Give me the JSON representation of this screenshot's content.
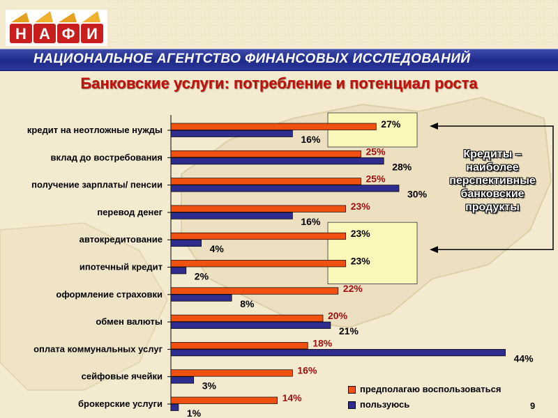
{
  "header": {
    "logo_letters": [
      "Н",
      "А",
      "Ф",
      "И"
    ],
    "banner_text": "НАЦИОНАЛЬНОЕ АГЕНТСТВО ФИНАНСОВЫХ ИССЛЕДОВАНИЙ"
  },
  "colors": {
    "background": "#f3ead0",
    "banner": "#23308e",
    "title": "#c0110e",
    "series_plan": "#f05010",
    "series_use": "#2e2c8c",
    "label_red": "#a01010",
    "highlight_box": "#fbf7b8"
  },
  "annotation": {
    "text": [
      "Кредиты –",
      "наиболее",
      "перспективные",
      "банковские",
      "продукты"
    ],
    "points_to": [
      "кредит на неотложные нужды",
      "автокредитование"
    ]
  },
  "page_number": "9",
  "chart_data": {
    "type": "bar",
    "orientation": "horizontal",
    "title": "Банковские услуги: потребление и потенциал роста",
    "xlabel": "",
    "ylabel": "",
    "unit": "%",
    "grid": false,
    "legend_position": "bottom-right",
    "categories": [
      "кредит на неотложные нужды",
      "вклад до востребования",
      "получение зарплаты/ пенсии",
      "перевод денег",
      "автокредитование",
      "ипотечный кредит",
      "оформление страховки",
      "обмен валюты",
      "оплата коммунальных услуг",
      "сейфовые ячейки",
      "брокерские услуги"
    ],
    "series": [
      {
        "name": "предполагаю воспользоваться",
        "color": "#f05010",
        "values": [
          27,
          25,
          25,
          23,
          23,
          23,
          22,
          20,
          18,
          16,
          14
        ],
        "labels": [
          "27%",
          "25%",
          "25%",
          "23%",
          "23%",
          "23%",
          "22%",
          "20%",
          "18%",
          "16%",
          "14%"
        ]
      },
      {
        "name": "пользуюсь",
        "color": "#2e2c8c",
        "values": [
          16,
          28,
          30,
          16,
          4,
          2,
          8,
          21,
          44,
          3,
          1
        ],
        "labels": [
          "16%",
          "28%",
          "30%",
          "16%",
          "4%",
          "2%",
          "8%",
          "21%",
          "44%",
          "3%",
          "1%"
        ]
      }
    ],
    "highlighted_groups": [
      [
        0
      ],
      [
        4,
        5
      ]
    ]
  }
}
